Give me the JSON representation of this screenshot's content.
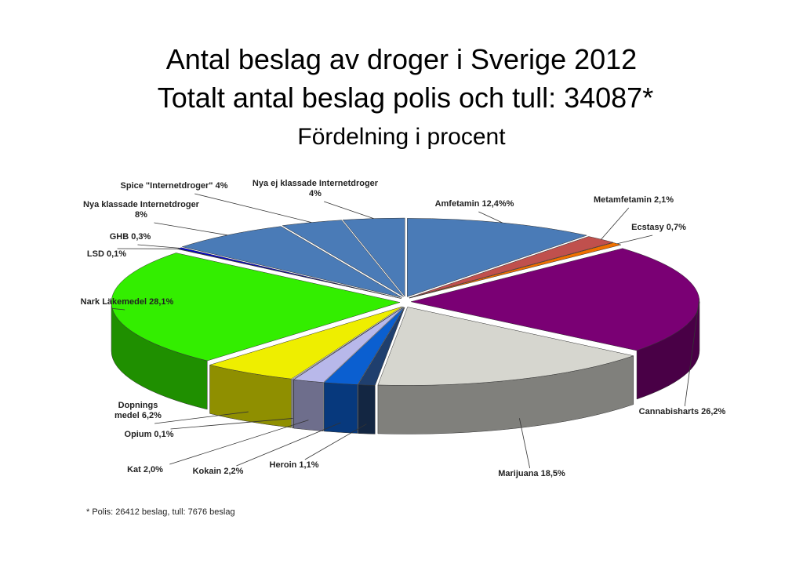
{
  "chart_data": {
    "type": "pie3d",
    "title": "Antal beslag av droger i Sverige 2012",
    "subtitle": "Totalt antal beslag polis och tull: 34087*",
    "subtitle2": "Fördelning i procent",
    "footnote": "* Polis: 26412 beslag, tull: 7676 beslag",
    "labels": [
      [
        "Amfetamin 12,4%%"
      ],
      [
        "Metamfetamin 2,1%"
      ],
      [
        "Ecstasy 0,7%"
      ],
      [
        "Cannabisharts 26,2%"
      ],
      [
        "Marijuana 18,5%"
      ],
      [
        "Heroin 1,1%"
      ],
      [
        "Kokain 2,2%"
      ],
      [
        "Kat 2,0%"
      ],
      [
        "Opium 0,1%"
      ],
      [
        "Dopnings",
        "medel 6,2%"
      ],
      [
        "Nark Läkemedel 28,1%"
      ],
      [
        "LSD 0,1%"
      ],
      [
        "GHB 0,3%"
      ],
      [
        "Nya klassade Internetdroger",
        "8%"
      ],
      [
        "Spice \"Internetdroger\" 4%"
      ],
      [
        "Nya ej klassade Internetdroger",
        "4%"
      ]
    ],
    "values": [
      12.4,
      2.1,
      0.7,
      26.2,
      18.5,
      1.1,
      2.2,
      2.0,
      0.1,
      6.2,
      28.1,
      0.1,
      0.3,
      8,
      4,
      4
    ],
    "colors": [
      "#4a7bb7",
      "#c0504d",
      "#f07000",
      "#7a0074",
      "#d6d6cf",
      "#1f3f6e",
      "#0b5fd0",
      "#b8b8ea",
      "#c8c8e0",
      "#eeee00",
      "#33ee00",
      "#2040a0",
      "#0000e0",
      "#4a7bb7",
      "#4a7bb7",
      "#4a7bb7"
    ]
  }
}
